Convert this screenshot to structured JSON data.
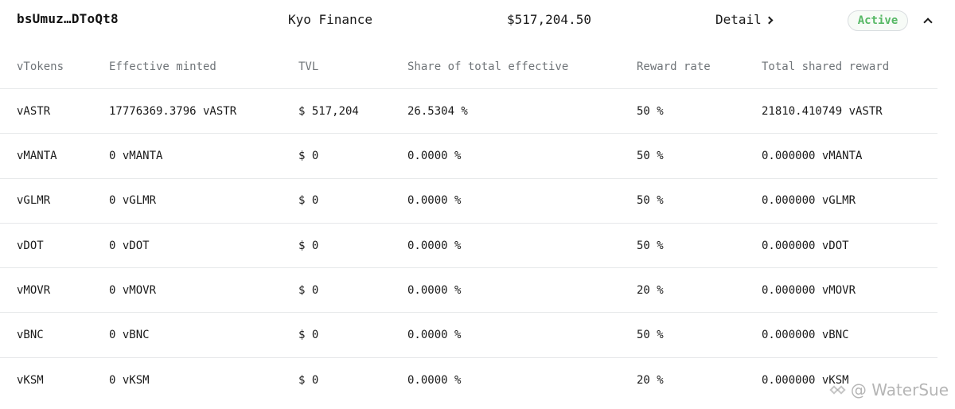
{
  "header": {
    "address": "bsUmuz…DToQt8",
    "project": "Kyo Finance",
    "tvl": "$517,204.50",
    "detail_label": "Detail",
    "status": "Active",
    "status_color": "#56b865"
  },
  "table": {
    "columns": [
      "vTokens",
      "Effective minted",
      "TVL",
      "Share of total effective",
      "Reward rate",
      "Total shared reward"
    ],
    "rows": [
      {
        "token": "vASTR",
        "minted": "17776369.3796 vASTR",
        "tvl": "$ 517,204",
        "share": "26.5304 %",
        "rate": "50 %",
        "reward": "21810.410749 vASTR"
      },
      {
        "token": "vMANTA",
        "minted": "0 vMANTA",
        "tvl": "$ 0",
        "share": "0.0000 %",
        "rate": "50 %",
        "reward": "0.000000 vMANTA"
      },
      {
        "token": "vGLMR",
        "minted": "0 vGLMR",
        "tvl": "$ 0",
        "share": "0.0000 %",
        "rate": "50 %",
        "reward": "0.000000 vGLMR"
      },
      {
        "token": "vDOT",
        "minted": "0 vDOT",
        "tvl": "$ 0",
        "share": "0.0000 %",
        "rate": "50 %",
        "reward": "0.000000 vDOT"
      },
      {
        "token": "vMOVR",
        "minted": "0 vMOVR",
        "tvl": "$ 0",
        "share": "0.0000 %",
        "rate": "20 %",
        "reward": "0.000000 vMOVR"
      },
      {
        "token": "vBNC",
        "minted": "0 vBNC",
        "tvl": "$ 0",
        "share": "0.0000 %",
        "rate": "50 %",
        "reward": "0.000000 vBNC"
      },
      {
        "token": "vKSM",
        "minted": "0 vKSM",
        "tvl": "$ 0",
        "share": "0.0000 %",
        "rate": "20 %",
        "reward": "0.000000 vKSM"
      }
    ]
  },
  "watermark": {
    "text": "@ WaterSue"
  },
  "icons": {
    "detail": "chevron-right-icon",
    "collapse": "chevron-up-icon",
    "watermark_logo": "logo-icon"
  }
}
